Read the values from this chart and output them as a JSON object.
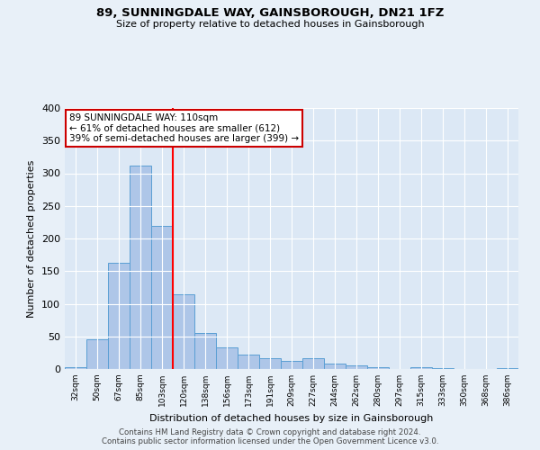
{
  "title": "89, SUNNINGDALE WAY, GAINSBOROUGH, DN21 1FZ",
  "subtitle": "Size of property relative to detached houses in Gainsborough",
  "xlabel": "Distribution of detached houses by size in Gainsborough",
  "ylabel": "Number of detached properties",
  "footer_line1": "Contains HM Land Registry data © Crown copyright and database right 2024.",
  "footer_line2": "Contains public sector information licensed under the Open Government Licence v3.0.",
  "categories": [
    "32sqm",
    "50sqm",
    "67sqm",
    "85sqm",
    "103sqm",
    "120sqm",
    "138sqm",
    "156sqm",
    "173sqm",
    "191sqm",
    "209sqm",
    "227sqm",
    "244sqm",
    "262sqm",
    "280sqm",
    "297sqm",
    "315sqm",
    "333sqm",
    "350sqm",
    "368sqm",
    "386sqm"
  ],
  "values": [
    3,
    46,
    163,
    312,
    220,
    115,
    55,
    33,
    22,
    16,
    12,
    17,
    8,
    5,
    3,
    0,
    3,
    2,
    0,
    0,
    2
  ],
  "bar_color": "#aec6e8",
  "bar_edge_color": "#5a9fd4",
  "property_label": "89 SUNNINGDALE WAY: 110sqm",
  "pct_smaller": 61,
  "count_smaller": 612,
  "pct_larger": 39,
  "count_larger": 399,
  "annotation_box_color": "#ffffff",
  "annotation_box_edgecolor": "#cc0000",
  "background_color": "#e8f0f8",
  "plot_background": "#dce8f5",
  "ylim": [
    0,
    400
  ],
  "yticks": [
    0,
    50,
    100,
    150,
    200,
    250,
    300,
    350,
    400
  ],
  "vline_pos": 4.5
}
